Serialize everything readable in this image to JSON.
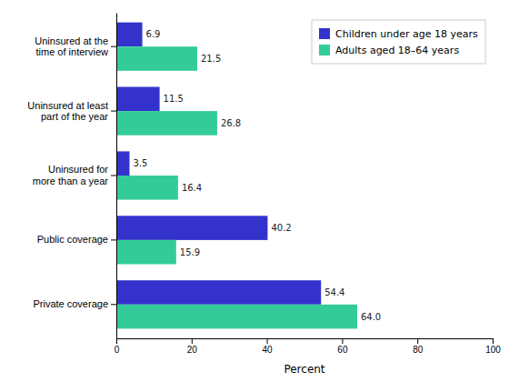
{
  "chart_data": {
    "type": "bar",
    "orientation": "horizontal",
    "categories": [
      "Uninsured at the\ntime of interview",
      "Uninsured at least\npart of the year",
      "Uninsured for\nmore than a year",
      "Public coverage",
      "Private coverage"
    ],
    "series": [
      {
        "name": "Children under age 18 years",
        "color": "#3333cc",
        "values": [
          6.9,
          11.5,
          3.5,
          40.2,
          54.4
        ],
        "value_labels": [
          "6.9",
          "11.5",
          "3.5",
          "40.2",
          "54.4"
        ]
      },
      {
        "name": "Adults aged 18–64 years",
        "color": "#33cc99",
        "values": [
          21.5,
          26.8,
          16.4,
          15.9,
          64.0
        ],
        "value_labels": [
          "21.5",
          "26.8",
          "16.4",
          "15.9",
          "64.0"
        ]
      }
    ],
    "xlim": [
      0,
      100
    ],
    "xticks": [
      0,
      20,
      40,
      60,
      80,
      100
    ],
    "xlabel": "Percent",
    "data_labels": true,
    "legend": "upper right",
    "grid": false
  }
}
